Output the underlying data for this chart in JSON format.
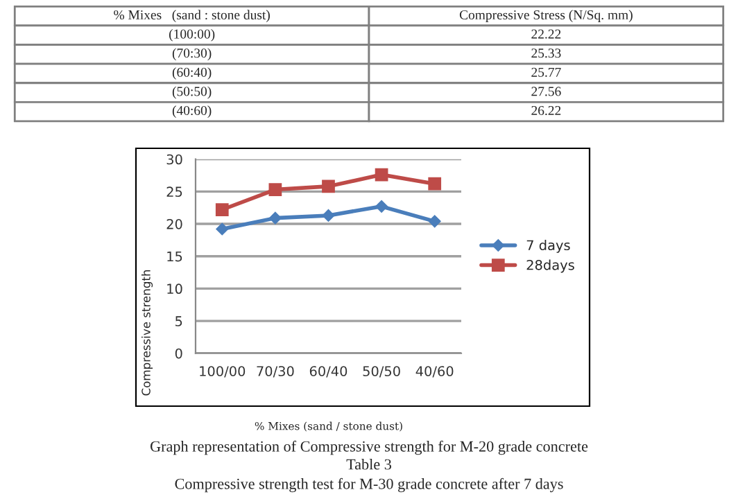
{
  "chart_data": {
    "type": "line",
    "categories": [
      "100/00",
      "70/30",
      "60/40",
      "50/50",
      "40/60"
    ],
    "series": [
      {
        "name": "7 days",
        "color": "#4a7ebb",
        "marker": "diamond",
        "values": [
          19.2,
          20.9,
          21.3,
          22.7,
          20.4
        ]
      },
      {
        "name": "28days",
        "color": "#be4b48",
        "marker": "square",
        "values": [
          22.2,
          25.3,
          25.8,
          27.6,
          26.2
        ]
      }
    ],
    "ylim": [
      0,
      30
    ],
    "yticks": [
      0,
      5,
      10,
      15,
      20,
      25,
      30
    ],
    "grid": "y",
    "legend": "right",
    "line_style": "solid",
    "xlabel": "% Mixes (sand / stone dust)",
    "ylabel": "Compressive strength",
    "annotations": [
      "% Mixes   (sand : stone dust)",
      "Compressive Stress (N/Sq. mm)",
      "(100:00)",
      "22.22",
      "(70:30)",
      "25.33",
      "(60:40)",
      "25.77",
      "(50:50)",
      "27.56",
      "(40:60)",
      "26.22",
      "Graph representation of Compressive strength for M-20 grade concrete",
      "Table 3",
      "Compressive strength test for M-30 grade concrete after 7 days"
    ]
  }
}
